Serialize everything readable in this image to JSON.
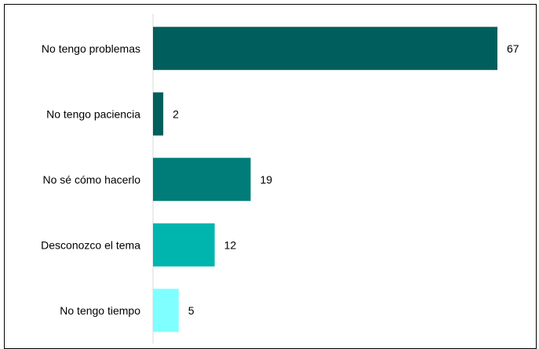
{
  "chart_data": {
    "type": "bar",
    "orientation": "horizontal",
    "categories": [
      "No tengo problemas",
      "No tengo paciencia",
      "No sé cómo hacerlo",
      "Desconozco el tema",
      "No tengo tiempo"
    ],
    "values": [
      67,
      2,
      19,
      12,
      5
    ],
    "colors": [
      "#005F5C",
      "#005F5C",
      "#007D78",
      "#00B5AE",
      "#7FFFFF"
    ],
    "title": "",
    "xlabel": "",
    "ylabel": "",
    "xlim": [
      0,
      67
    ],
    "grid": false,
    "legend": "none",
    "axis_color": "#D9D9D9"
  }
}
